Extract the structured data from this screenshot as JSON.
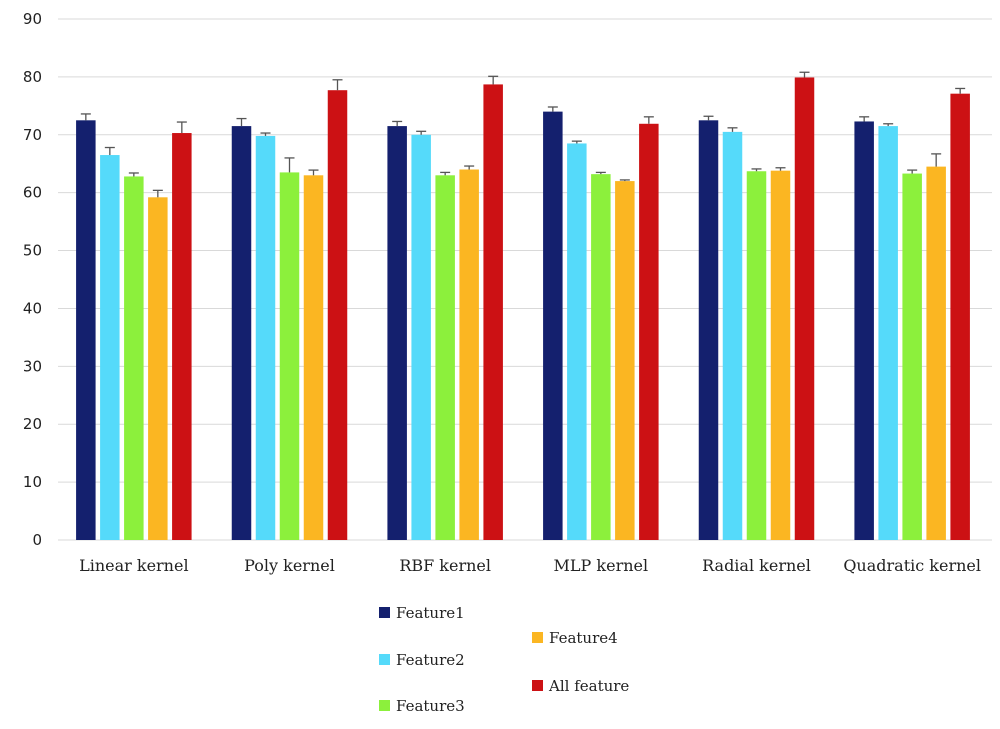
{
  "chart_data": {
    "type": "bar",
    "title": "",
    "xlabel": "",
    "ylabel": "",
    "ylim": [
      0,
      90
    ],
    "yticks": [
      0,
      10,
      20,
      30,
      40,
      50,
      60,
      70,
      80,
      90
    ],
    "grid": true,
    "legend_position": "bottom-center",
    "categories": [
      "Linear kernel",
      "Poly kernel",
      "RBF kernel",
      "MLP kernel",
      "Radial kernel",
      "Quadratic kernel"
    ],
    "series": [
      {
        "name": "Feature1",
        "color": "#14206e",
        "values": [
          72.5,
          71.5,
          71.5,
          74.0,
          72.5,
          72.3
        ],
        "errors": [
          1.1,
          1.3,
          0.8,
          0.8,
          0.7,
          0.8
        ]
      },
      {
        "name": "Feature2",
        "color": "#55dafa",
        "values": [
          66.5,
          69.8,
          70.0,
          68.5,
          70.5,
          71.5
        ],
        "errors": [
          1.3,
          0.5,
          0.6,
          0.4,
          0.7,
          0.4
        ]
      },
      {
        "name": "Feature3",
        "color": "#8cf03c",
        "values": [
          62.8,
          63.5,
          63.0,
          63.2,
          63.7,
          63.3
        ],
        "errors": [
          0.6,
          2.5,
          0.5,
          0.3,
          0.4,
          0.6
        ]
      },
      {
        "name": "Feature4",
        "color": "#fbb622",
        "values": [
          59.2,
          63.0,
          64.0,
          62.0,
          63.8,
          64.5
        ],
        "errors": [
          1.2,
          0.9,
          0.6,
          0.2,
          0.5,
          2.2
        ]
      },
      {
        "name": "All feature",
        "color": "#cc1114",
        "values": [
          70.3,
          77.7,
          78.7,
          71.9,
          79.9,
          77.1
        ],
        "errors": [
          1.9,
          1.8,
          1.4,
          1.2,
          0.9,
          0.9
        ]
      }
    ]
  }
}
